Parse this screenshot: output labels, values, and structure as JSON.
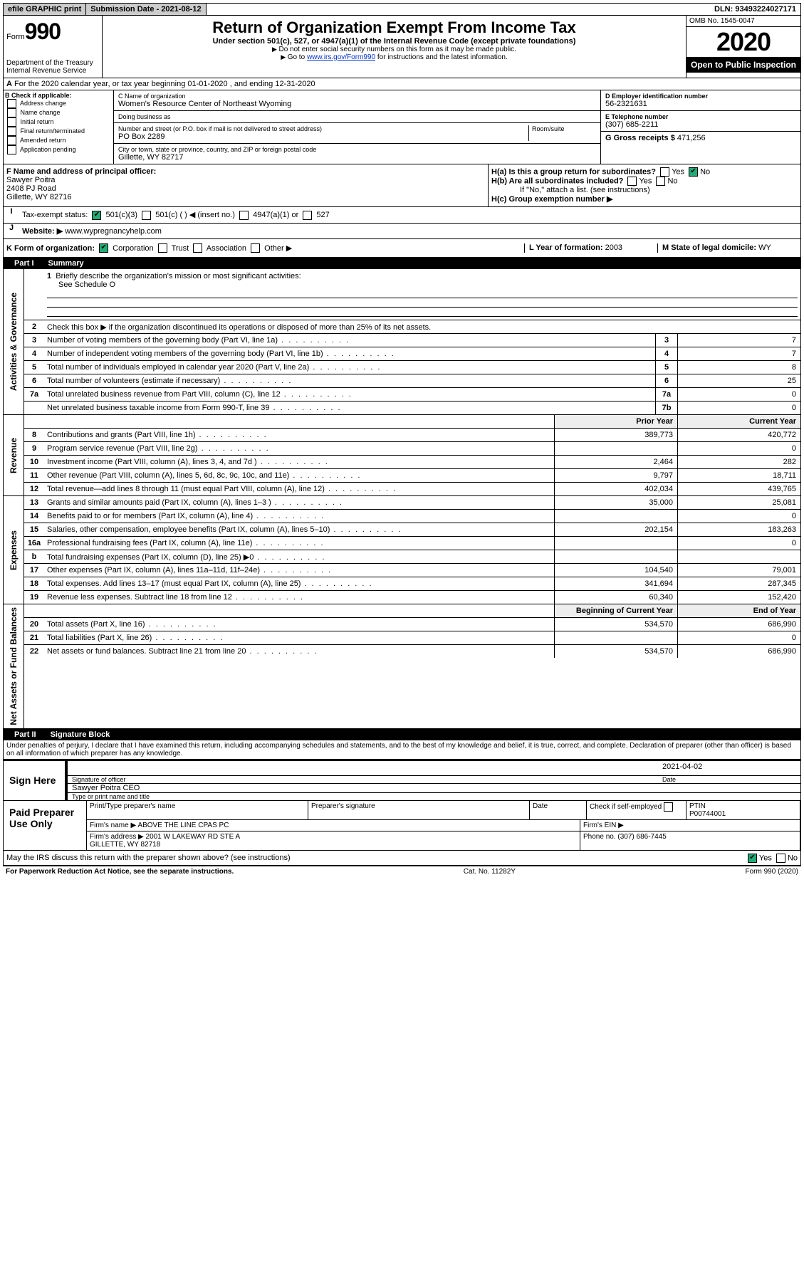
{
  "top": {
    "efile": "efile GRAPHIC print",
    "submission": "Submission Date - 2021-08-12",
    "dln": "DLN: 93493224027171"
  },
  "header": {
    "form_word": "Form",
    "form_num": "990",
    "dept": "Department of the Treasury\nInternal Revenue Service",
    "title": "Return of Organization Exempt From Income Tax",
    "subtitle": "Under section 501(c), 527, or 4947(a)(1) of the Internal Revenue Code (except private foundations)",
    "note1": "Do not enter social security numbers on this form as it may be made public.",
    "note2_pre": "Go to ",
    "note2_link": "www.irs.gov/Form990",
    "note2_post": " for instructions and the latest information.",
    "omb": "OMB No. 1545-0047",
    "year": "2020",
    "open": "Open to Public Inspection"
  },
  "period": {
    "text": "For the 2020 calendar year, or tax year beginning 01-01-2020     , and ending 12-31-2020"
  },
  "blockB": {
    "label": "B Check if applicable:",
    "items": [
      "Address change",
      "Name change",
      "Initial return",
      "Final return/terminated",
      "Amended return",
      "Application pending"
    ]
  },
  "blockC": {
    "name_label": "C Name of organization",
    "name": "Women's Resource Center of Northeast Wyoming",
    "dba_label": "Doing business as",
    "dba": "",
    "addr_label": "Number and street (or P.O. box if mail is not delivered to street address)",
    "room_label": "Room/suite",
    "addr": "PO Box 2289",
    "city_label": "City or town, state or province, country, and ZIP or foreign postal code",
    "city": "Gillette, WY  82717"
  },
  "blockD": {
    "label": "D Employer identification number",
    "ein": "56-2321631",
    "e_label": "E Telephone number",
    "phone": "(307) 685-2211",
    "g_label": "G Gross receipts $",
    "g_val": "471,256"
  },
  "blockF": {
    "label": "F  Name and address of principal officer:",
    "name": "Sawyer Poitra",
    "addr1": "2408 PJ Road",
    "addr2": "Gillette, WY  82716"
  },
  "blockH": {
    "ha_label": "H(a)  Is this a group return for subordinates?",
    "hb_label": "H(b)  Are all subordinates included?",
    "hb_note": "If \"No,\" attach a list. (see instructions)",
    "hc_label": "H(c)  Group exemption number ▶"
  },
  "taxExempt": {
    "label": "Tax-exempt status:",
    "opts": [
      "501(c)(3)",
      "501(c) (   ) ◀ (insert no.)",
      "4947(a)(1) or",
      "527"
    ]
  },
  "website": {
    "label": "Website: ▶",
    "val": "www.wypregnancyhelp.com"
  },
  "rowK": {
    "label": "K Form of organization:",
    "opts": [
      "Corporation",
      "Trust",
      "Association",
      "Other ▶"
    ],
    "l_label": "L Year of formation:",
    "l_val": "2003",
    "m_label": "M State of legal domicile:",
    "m_val": "WY"
  },
  "part1": {
    "title": "Part I",
    "heading": "Summary",
    "sections": {
      "gov": "Activities & Governance",
      "rev": "Revenue",
      "exp": "Expenses",
      "net": "Net Assets or Fund Balances"
    },
    "line1": "Briefly describe the organization's mission or most significant activities:",
    "line1_val": "See Schedule O",
    "line2": "Check this box ▶        if the organization discontinued its operations or disposed of more than 25% of its net assets.",
    "lines_gov": [
      {
        "n": "3",
        "t": "Number of voting members of the governing body (Part VI, line 1a)",
        "box": "3",
        "v": "7"
      },
      {
        "n": "4",
        "t": "Number of independent voting members of the governing body (Part VI, line 1b)",
        "box": "4",
        "v": "7"
      },
      {
        "n": "5",
        "t": "Total number of individuals employed in calendar year 2020 (Part V, line 2a)",
        "box": "5",
        "v": "8"
      },
      {
        "n": "6",
        "t": "Total number of volunteers (estimate if necessary)",
        "box": "6",
        "v": "25"
      },
      {
        "n": "7a",
        "t": "Total unrelated business revenue from Part VIII, column (C), line 12",
        "box": "7a",
        "v": "0"
      },
      {
        "n": "",
        "t": "Net unrelated business taxable income from Form 990-T, line 39",
        "box": "7b",
        "v": "0"
      }
    ],
    "col_prior": "Prior Year",
    "col_current": "Current Year",
    "col_begin": "Beginning of Current Year",
    "col_end": "End of Year",
    "lines_rev": [
      {
        "n": "8",
        "t": "Contributions and grants (Part VIII, line 1h)",
        "p": "389,773",
        "c": "420,772"
      },
      {
        "n": "9",
        "t": "Program service revenue (Part VIII, line 2g)",
        "p": "",
        "c": "0"
      },
      {
        "n": "10",
        "t": "Investment income (Part VIII, column (A), lines 3, 4, and 7d )",
        "p": "2,464",
        "c": "282"
      },
      {
        "n": "11",
        "t": "Other revenue (Part VIII, column (A), lines 5, 6d, 8c, 9c, 10c, and 11e)",
        "p": "9,797",
        "c": "18,711"
      },
      {
        "n": "12",
        "t": "Total revenue—add lines 8 through 11 (must equal Part VIII, column (A), line 12)",
        "p": "402,034",
        "c": "439,765"
      }
    ],
    "lines_exp": [
      {
        "n": "13",
        "t": "Grants and similar amounts paid (Part IX, column (A), lines 1–3 )",
        "p": "35,000",
        "c": "25,081"
      },
      {
        "n": "14",
        "t": "Benefits paid to or for members (Part IX, column (A), line 4)",
        "p": "",
        "c": "0"
      },
      {
        "n": "15",
        "t": "Salaries, other compensation, employee benefits (Part IX, column (A), lines 5–10)",
        "p": "202,154",
        "c": "183,263"
      },
      {
        "n": "16a",
        "t": "Professional fundraising fees (Part IX, column (A), line 11e)",
        "p": "",
        "c": "0"
      },
      {
        "n": "b",
        "t": "Total fundraising expenses (Part IX, column (D), line 25) ▶0",
        "p": "",
        "c": ""
      },
      {
        "n": "17",
        "t": "Other expenses (Part IX, column (A), lines 11a–11d, 11f–24e)",
        "p": "104,540",
        "c": "79,001"
      },
      {
        "n": "18",
        "t": "Total expenses. Add lines 13–17 (must equal Part IX, column (A), line 25)",
        "p": "341,694",
        "c": "287,345"
      },
      {
        "n": "19",
        "t": "Revenue less expenses. Subtract line 18 from line 12",
        "p": "60,340",
        "c": "152,420"
      }
    ],
    "lines_net": [
      {
        "n": "20",
        "t": "Total assets (Part X, line 16)",
        "p": "534,570",
        "c": "686,990"
      },
      {
        "n": "21",
        "t": "Total liabilities (Part X, line 26)",
        "p": "",
        "c": "0"
      },
      {
        "n": "22",
        "t": "Net assets or fund balances. Subtract line 21 from line 20",
        "p": "534,570",
        "c": "686,990"
      }
    ]
  },
  "part2": {
    "title": "Part II",
    "heading": "Signature Block",
    "perjury": "Under penalties of perjury, I declare that I have examined this return, including accompanying schedules and statements, and to the best of my knowledge and belief, it is true, correct, and complete. Declaration of preparer (other than officer) is based on all information of which preparer has any knowledge.",
    "sign_here": "Sign Here",
    "sig_officer": "Signature of officer",
    "sig_date": "2021-04-02",
    "date_label": "Date",
    "officer_name": "Sawyer Poitra CEO",
    "type_name": "Type or print name and title",
    "paid": "Paid Preparer Use Only",
    "prep_name_label": "Print/Type preparer's name",
    "prep_sig_label": "Preparer's signature",
    "check_self": "Check        if self-employed",
    "ptin_label": "PTIN",
    "ptin": "P00744001",
    "firm_name_label": "Firm's name    ▶",
    "firm_name": "ABOVE THE LINE CPAS PC",
    "firm_ein_label": "Firm's EIN ▶",
    "firm_addr_label": "Firm's address ▶",
    "firm_addr": "2001 W LAKEWAY RD STE A\nGILLETTE, WY  82718",
    "firm_phone_label": "Phone no.",
    "firm_phone": "(307) 686-7445",
    "discuss": "May the IRS discuss this return with the preparer shown above? (see instructions)"
  },
  "footer": {
    "pra": "For Paperwork Reduction Act Notice, see the separate instructions.",
    "cat": "Cat. No. 11282Y",
    "form": "Form 990 (2020)"
  }
}
